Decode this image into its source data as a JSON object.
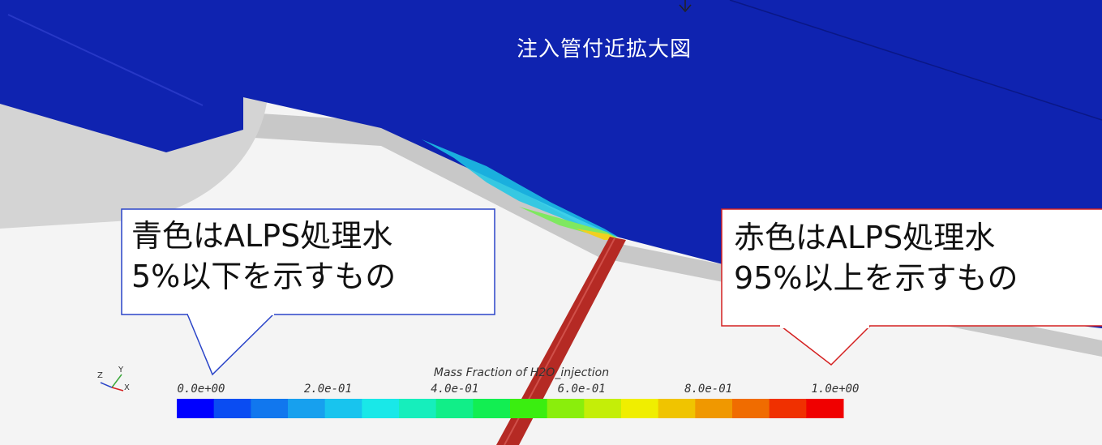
{
  "view_title": "注入管付近拡大図",
  "callouts": {
    "left": {
      "line1": "青色はALPS処理水",
      "line2": "5%以下を示すもの"
    },
    "right": {
      "line1": "赤色はALPS処理水",
      "line2": "95%以上を示すもの"
    }
  },
  "colorbar": {
    "title": "Mass Fraction of H2O_injection",
    "ticks": [
      {
        "value": 0.0,
        "label": "0.0e+00"
      },
      {
        "value": 0.2,
        "label": "2.0e-01"
      },
      {
        "value": 0.4,
        "label": "4.0e-01"
      },
      {
        "value": 0.6,
        "label": "6.0e-01"
      },
      {
        "value": 0.8,
        "label": "8.0e-01"
      },
      {
        "value": 1.0,
        "label": "1.0e+00"
      }
    ],
    "colors": [
      "#0000ff",
      "#0a4cf2",
      "#1177ee",
      "#17a0ee",
      "#18c4ee",
      "#19e8e8",
      "#16eebc",
      "#11ee88",
      "#12ee52",
      "#3aee10",
      "#8aee0c",
      "#c4ee08",
      "#f0ee00",
      "#f0c400",
      "#f09800",
      "#f06c00",
      "#f03000",
      "#f00000"
    ]
  },
  "axes_triad": {
    "z": "Z",
    "y": "Y",
    "x": "X"
  },
  "colors": {
    "water": "#0f23b0",
    "pipe": "#b52a24",
    "left_callout_border": "#2a44c8",
    "right_callout_border": "#d42020"
  }
}
